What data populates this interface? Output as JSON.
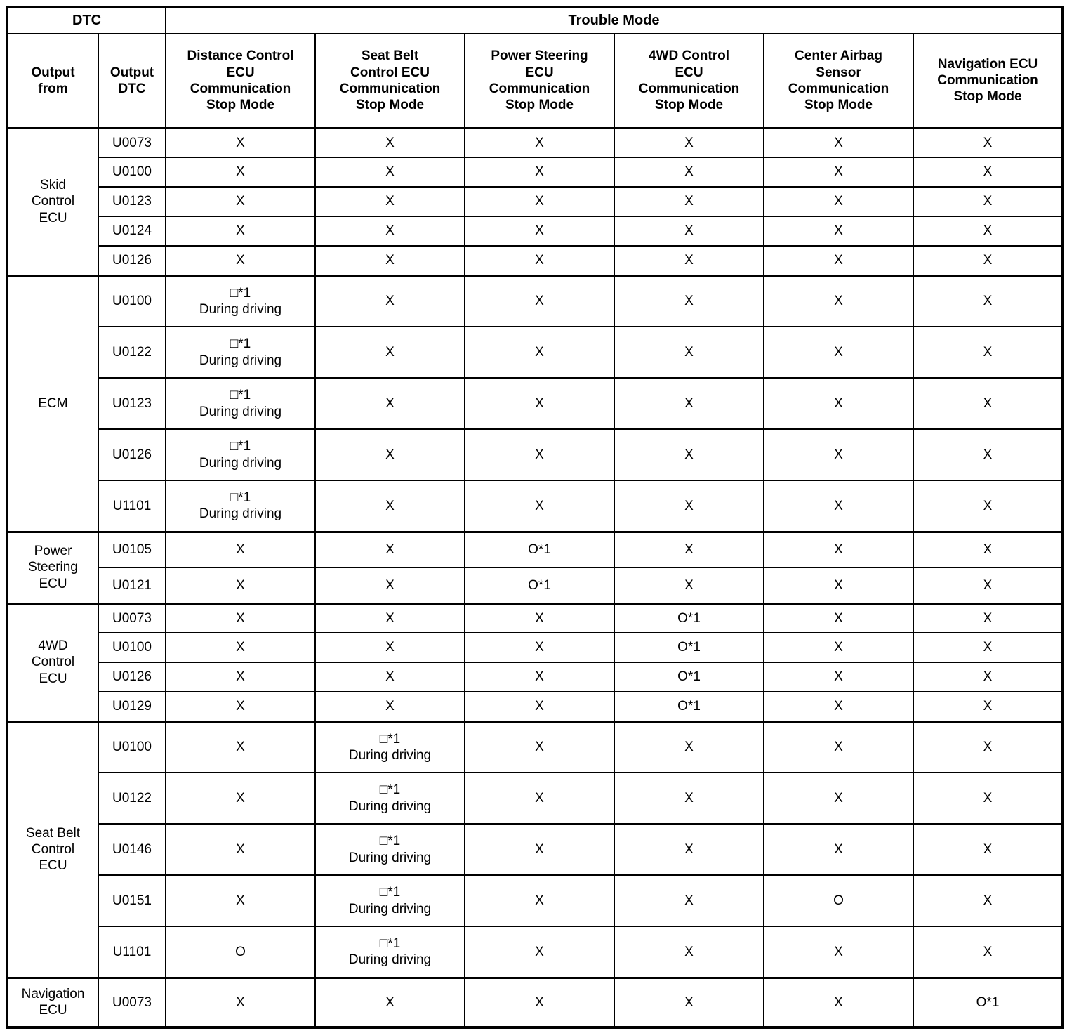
{
  "table": {
    "header": {
      "dtc": "DTC",
      "trouble_mode": "Trouble Mode",
      "output_from": "Output\nfrom",
      "output_dtc": "Output\nDTC",
      "columns": [
        "Distance Control\nECU\nCommunication\nStop Mode",
        "Seat Belt\nControl ECU\nCommunication\nStop Mode",
        "Power Steering\nECU\nCommunication\nStop Mode",
        "4WD Control\nECU\nCommunication\nStop Mode",
        "Center Airbag\nSensor\nCommunication\nStop Mode",
        "Navigation ECU\nCommunication\nStop Mode"
      ]
    },
    "colors": {
      "border": "#000000",
      "background": "#ffffff",
      "text": "#000000"
    },
    "sections": [
      {
        "output_from": "Skid\nControl\nECU",
        "rows": [
          {
            "dtc": "U0073",
            "cells": [
              "X",
              "X",
              "X",
              "X",
              "X",
              "X"
            ]
          },
          {
            "dtc": "U0100",
            "cells": [
              "X",
              "X",
              "X",
              "X",
              "X",
              "X"
            ]
          },
          {
            "dtc": "U0123",
            "cells": [
              "X",
              "X",
              "X",
              "X",
              "X",
              "X"
            ]
          },
          {
            "dtc": "U0124",
            "cells": [
              "X",
              "X",
              "X",
              "X",
              "X",
              "X"
            ]
          },
          {
            "dtc": "U0126",
            "cells": [
              "X",
              "X",
              "X",
              "X",
              "X",
              "X"
            ]
          }
        ]
      },
      {
        "output_from": "ECM",
        "rows": [
          {
            "dtc": "U0100",
            "cells": [
              "□*1\nDuring driving",
              "X",
              "X",
              "X",
              "X",
              "X"
            ]
          },
          {
            "dtc": "U0122",
            "cells": [
              "□*1\nDuring driving",
              "X",
              "X",
              "X",
              "X",
              "X"
            ]
          },
          {
            "dtc": "U0123",
            "cells": [
              "□*1\nDuring driving",
              "X",
              "X",
              "X",
              "X",
              "X"
            ]
          },
          {
            "dtc": "U0126",
            "cells": [
              "□*1\nDuring driving",
              "X",
              "X",
              "X",
              "X",
              "X"
            ]
          },
          {
            "dtc": "U1101",
            "cells": [
              "□*1\nDuring driving",
              "X",
              "X",
              "X",
              "X",
              "X"
            ]
          }
        ]
      },
      {
        "output_from": "Power\nSteering\nECU",
        "rows": [
          {
            "dtc": "U0105",
            "cells": [
              "X",
              "X",
              "O*1",
              "X",
              "X",
              "X"
            ]
          },
          {
            "dtc": "U0121",
            "cells": [
              "X",
              "X",
              "O*1",
              "X",
              "X",
              "X"
            ]
          }
        ]
      },
      {
        "output_from": "4WD\nControl\nECU",
        "rows": [
          {
            "dtc": "U0073",
            "cells": [
              "X",
              "X",
              "X",
              "O*1",
              "X",
              "X"
            ]
          },
          {
            "dtc": "U0100",
            "cells": [
              "X",
              "X",
              "X",
              "O*1",
              "X",
              "X"
            ]
          },
          {
            "dtc": "U0126",
            "cells": [
              "X",
              "X",
              "X",
              "O*1",
              "X",
              "X"
            ]
          },
          {
            "dtc": "U0129",
            "cells": [
              "X",
              "X",
              "X",
              "O*1",
              "X",
              "X"
            ]
          }
        ]
      },
      {
        "output_from": "Seat Belt\nControl\nECU",
        "rows": [
          {
            "dtc": "U0100",
            "cells": [
              "X",
              "□*1\nDuring driving",
              "X",
              "X",
              "X",
              "X"
            ]
          },
          {
            "dtc": "U0122",
            "cells": [
              "X",
              "□*1\nDuring driving",
              "X",
              "X",
              "X",
              "X"
            ]
          },
          {
            "dtc": "U0146",
            "cells": [
              "X",
              "□*1\nDuring driving",
              "X",
              "X",
              "X",
              "X"
            ]
          },
          {
            "dtc": "U0151",
            "cells": [
              "X",
              "□*1\nDuring driving",
              "X",
              "X",
              "O",
              "X"
            ]
          },
          {
            "dtc": "U1101",
            "cells": [
              "O",
              "□*1\nDuring driving",
              "X",
              "X",
              "X",
              "X"
            ]
          }
        ]
      },
      {
        "output_from": "Navigation\nECU",
        "rows": [
          {
            "dtc": "U0073",
            "cells": [
              "X",
              "X",
              "X",
              "X",
              "X",
              "O*1"
            ]
          }
        ]
      }
    ]
  }
}
